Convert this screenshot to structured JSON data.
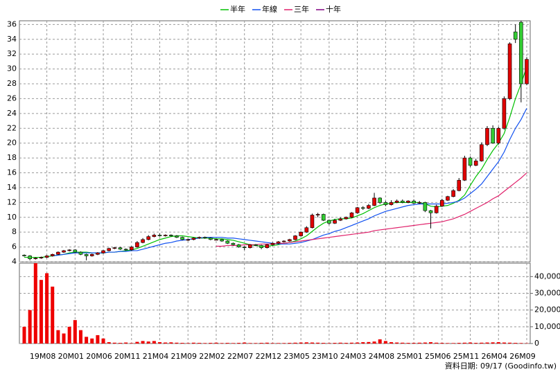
{
  "chart_data": {
    "type": "candlestick",
    "legend": "top",
    "grid": true,
    "up_color": "#e00000",
    "down_color": "#33cc33",
    "categories": [
      null,
      null,
      null,
      null,
      "19M08",
      null,
      null,
      null,
      null,
      "20M01",
      null,
      null,
      null,
      null,
      "20M06",
      null,
      null,
      null,
      null,
      "20M11",
      null,
      null,
      null,
      null,
      "21M04",
      null,
      null,
      null,
      null,
      "21M09",
      null,
      null,
      null,
      null,
      "22M02",
      null,
      null,
      null,
      null,
      "22M07",
      null,
      null,
      null,
      null,
      "22M12",
      null,
      null,
      null,
      null,
      "23M05",
      null,
      null,
      null,
      null,
      "23M10",
      null,
      null,
      null,
      null,
      "24M03",
      null,
      null,
      null,
      null,
      "24M08",
      null,
      null,
      null,
      null,
      "25M01",
      null,
      null,
      null,
      null,
      "25M06",
      null,
      null,
      null,
      null,
      "25M11",
      null,
      null,
      null,
      null,
      "26M04",
      null,
      null,
      null,
      null,
      "26M09"
    ],
    "open": [
      4.9,
      4.8,
      4.4,
      4.5,
      4.6,
      4.8,
      5.0,
      5.3,
      5.5,
      5.6,
      5.3,
      5.0,
      4.8,
      5.0,
      5.2,
      5.5,
      5.8,
      5.9,
      5.7,
      5.6,
      6.0,
      6.6,
      7.0,
      7.4,
      7.6,
      7.5,
      7.6,
      7.5,
      7.3,
      7.0,
      7.0,
      7.2,
      7.3,
      7.2,
      7.0,
      7.0,
      6.8,
      6.5,
      6.3,
      6.0,
      5.9,
      6.3,
      6.2,
      5.9,
      6.3,
      6.5,
      6.7,
      6.8,
      7.0,
      7.5,
      8.0,
      8.6,
      10.3,
      10.4,
      9.6,
      9.2,
      9.6,
      9.8,
      10.0,
      10.6,
      11.3,
      11.2,
      11.6,
      12.6,
      12.0,
      11.7,
      12.0,
      12.2,
      12.0,
      12.2,
      11.9,
      12.0,
      10.9,
      10.6,
      11.5,
      12.3,
      12.8,
      13.6,
      15.0,
      18.0,
      17.0,
      17.6,
      19.8,
      22.0,
      20.0,
      22.0,
      26.0,
      35.0,
      36.3,
      28.0
    ],
    "high": [
      5.0,
      4.9,
      4.6,
      4.7,
      4.9,
      5.1,
      5.4,
      5.6,
      5.7,
      5.7,
      5.4,
      5.1,
      5.1,
      5.3,
      5.6,
      5.9,
      6.0,
      6.0,
      5.8,
      6.1,
      6.8,
      7.2,
      7.6,
      7.8,
      7.8,
      7.7,
      7.7,
      7.6,
      7.4,
      7.1,
      7.3,
      7.4,
      7.4,
      7.3,
      7.1,
      7.1,
      6.9,
      6.6,
      6.4,
      6.1,
      6.4,
      6.4,
      6.3,
      6.4,
      6.6,
      6.8,
      6.9,
      7.1,
      7.6,
      8.1,
      8.8,
      10.5,
      10.6,
      10.5,
      9.7,
      9.8,
      10.0,
      10.1,
      10.7,
      11.4,
      11.5,
      11.8,
      13.3,
      12.7,
      12.2,
      12.3,
      12.4,
      12.4,
      12.3,
      12.4,
      12.2,
      12.1,
      11.0,
      11.7,
      12.5,
      12.9,
      13.8,
      15.3,
      18.3,
      18.2,
      17.9,
      20.1,
      22.3,
      22.4,
      22.2,
      26.3,
      33.6,
      36.0,
      36.5,
      31.6
    ],
    "low": [
      4.7,
      4.2,
      4.3,
      4.4,
      4.5,
      4.7,
      4.9,
      5.2,
      5.4,
      5.2,
      4.9,
      4.2,
      4.7,
      4.9,
      5.1,
      5.4,
      5.7,
      5.6,
      5.5,
      5.5,
      5.9,
      6.5,
      6.9,
      7.3,
      7.4,
      7.4,
      7.4,
      7.2,
      6.9,
      6.8,
      6.9,
      7.1,
      7.1,
      6.9,
      6.9,
      6.7,
      6.4,
      6.2,
      5.9,
      5.6,
      5.8,
      6.1,
      5.7,
      5.8,
      6.2,
      6.4,
      6.6,
      6.7,
      6.9,
      7.4,
      7.9,
      8.5,
      10.0,
      9.5,
      9.0,
      9.1,
      9.5,
      9.7,
      9.9,
      10.5,
      11.0,
      11.1,
      11.5,
      11.8,
      11.5,
      11.6,
      11.9,
      11.9,
      11.9,
      11.8,
      11.8,
      10.7,
      8.5,
      10.5,
      11.4,
      12.2,
      12.7,
      13.5,
      14.9,
      16.8,
      16.9,
      17.5,
      19.6,
      19.9,
      19.8,
      21.8,
      25.8,
      33.5,
      25.5,
      27.8
    ],
    "close": [
      4.8,
      4.4,
      4.5,
      4.6,
      4.8,
      5.0,
      5.3,
      5.5,
      5.6,
      5.3,
      5.0,
      4.8,
      5.0,
      5.2,
      5.5,
      5.8,
      5.9,
      5.7,
      5.6,
      6.0,
      6.6,
      7.0,
      7.4,
      7.6,
      7.5,
      7.6,
      7.5,
      7.3,
      7.0,
      7.0,
      7.2,
      7.3,
      7.2,
      7.0,
      7.0,
      6.8,
      6.5,
      6.3,
      6.0,
      5.9,
      6.3,
      6.2,
      5.9,
      6.3,
      6.5,
      6.7,
      6.8,
      7.0,
      7.5,
      8.0,
      8.6,
      10.3,
      10.4,
      9.6,
      9.2,
      9.6,
      9.8,
      10.0,
      10.6,
      11.3,
      11.2,
      11.6,
      12.6,
      12.0,
      11.7,
      12.0,
      12.2,
      12.0,
      12.2,
      11.9,
      12.0,
      10.9,
      10.6,
      11.5,
      12.3,
      12.8,
      13.6,
      15.0,
      18.0,
      17.0,
      17.6,
      19.8,
      22.0,
      20.0,
      22.0,
      26.0,
      33.4,
      34.0,
      28.0,
      31.3
    ],
    "ylim": [
      4,
      36.5
    ],
    "yticks": [
      4,
      6,
      8,
      10,
      12,
      14,
      16,
      18,
      20,
      22,
      24,
      26,
      28,
      30,
      32,
      34,
      36
    ],
    "series": [
      {
        "name": "半年",
        "color": "#00c000",
        "values": [
          4.6,
          4.6,
          4.6,
          4.6,
          4.7,
          4.8,
          4.9,
          5.0,
          5.2,
          5.3,
          5.3,
          5.3,
          5.2,
          5.2,
          5.2,
          5.3,
          5.3,
          5.4,
          5.5,
          5.6,
          5.8,
          6.1,
          6.4,
          6.7,
          7.0,
          7.2,
          7.4,
          7.5,
          7.5,
          7.4,
          7.3,
          7.2,
          7.2,
          7.2,
          7.1,
          7.1,
          7.0,
          6.9,
          6.7,
          6.5,
          6.3,
          6.2,
          6.1,
          6.1,
          6.2,
          6.3,
          6.5,
          6.6,
          6.8,
          7.1,
          7.5,
          8.1,
          8.7,
          9.2,
          9.5,
          9.7,
          9.8,
          9.8,
          9.9,
          10.2,
          10.5,
          10.9,
          11.3,
          11.6,
          11.8,
          11.9,
          12.0,
          12.0,
          12.0,
          12.0,
          12.0,
          11.8,
          11.5,
          11.4,
          11.5,
          11.6,
          11.9,
          12.3,
          13.0,
          14.3,
          15.5,
          16.5,
          17.8,
          19.0,
          20.0,
          21.3,
          23.5,
          26.0,
          28.0,
          30.3
        ]
      },
      {
        "name": "年線",
        "color": "#1050f0",
        "values": [
          null,
          null,
          null,
          null,
          null,
          4.8,
          4.9,
          5.0,
          5.1,
          5.2,
          5.2,
          5.2,
          5.2,
          5.2,
          5.2,
          5.3,
          5.3,
          5.4,
          5.4,
          5.5,
          5.5,
          5.7,
          5.9,
          6.1,
          6.3,
          6.5,
          6.6,
          6.8,
          6.9,
          7.0,
          7.1,
          7.2,
          7.3,
          7.3,
          7.3,
          7.3,
          7.2,
          7.2,
          7.1,
          7.0,
          6.9,
          6.8,
          6.7,
          6.6,
          6.5,
          6.4,
          6.4,
          6.4,
          6.5,
          6.6,
          6.8,
          7.0,
          7.3,
          7.6,
          7.8,
          8.1,
          8.3,
          8.6,
          8.9,
          9.2,
          9.5,
          9.8,
          10.2,
          10.5,
          10.8,
          11.0,
          11.2,
          11.4,
          11.6,
          11.7,
          11.8,
          11.8,
          11.8,
          11.8,
          11.8,
          11.9,
          12.0,
          12.2,
          12.6,
          13.2,
          13.8,
          14.5,
          15.5,
          16.5,
          17.5,
          18.8,
          20.5,
          22.0,
          23.2,
          24.7
        ]
      },
      {
        "name": "三年",
        "color": "#e0206a",
        "values": [
          null,
          null,
          null,
          null,
          null,
          null,
          null,
          null,
          null,
          null,
          null,
          null,
          null,
          null,
          null,
          null,
          null,
          null,
          null,
          null,
          null,
          null,
          null,
          null,
          null,
          null,
          null,
          null,
          null,
          null,
          null,
          null,
          null,
          null,
          6.1,
          6.1,
          6.2,
          6.2,
          6.2,
          6.3,
          6.3,
          6.3,
          6.4,
          6.4,
          6.4,
          6.5,
          6.5,
          6.6,
          6.7,
          6.8,
          6.9,
          7.0,
          7.1,
          7.2,
          7.3,
          7.4,
          7.5,
          7.6,
          7.7,
          7.8,
          7.9,
          8.0,
          8.2,
          8.3,
          8.4,
          8.5,
          8.6,
          8.7,
          8.8,
          8.9,
          9.0,
          9.1,
          9.2,
          9.3,
          9.4,
          9.6,
          9.8,
          10.1,
          10.4,
          10.8,
          11.2,
          11.6,
          12.0,
          12.5,
          12.9,
          13.5,
          14.1,
          14.7,
          15.3,
          16.0
        ]
      },
      {
        "name": "十年",
        "color": "#800080",
        "values": [
          null,
          null,
          null,
          null,
          null,
          null,
          null,
          null,
          null,
          null,
          null,
          null,
          null,
          null,
          null,
          null,
          null,
          null,
          null,
          null,
          null,
          null,
          null,
          null,
          null,
          null,
          null,
          null,
          null,
          null,
          null,
          null,
          null,
          null,
          null,
          null,
          null,
          null,
          null,
          null,
          null,
          null,
          null,
          null,
          null,
          null,
          null,
          null,
          null,
          null,
          null,
          null,
          null,
          null,
          null,
          null,
          null,
          null,
          null,
          null,
          null,
          null,
          null,
          null,
          null,
          null,
          null,
          null,
          null,
          null,
          null,
          null,
          null,
          null,
          null,
          null,
          null,
          null,
          null,
          null,
          null,
          null,
          null,
          null,
          null,
          null,
          null,
          null,
          null,
          null
        ]
      }
    ],
    "volume": {
      "color": "#ee0000",
      "ylim": [
        0,
        48000
      ],
      "yticks": [
        0,
        {
          "value": 10000,
          "label": "10,000"
        },
        {
          "value": 20000,
          "label": "20,000"
        },
        {
          "value": 30000,
          "label": "30,000"
        },
        {
          "value": 40000,
          "label": "40,000"
        }
      ],
      "values": [
        10000,
        20000,
        48000,
        38000,
        42000,
        34000,
        8000,
        6000,
        10000,
        14000,
        8000,
        4000,
        3000,
        5000,
        3000,
        800,
        500,
        400,
        600,
        300,
        1000,
        1500,
        1200,
        1500,
        800,
        600,
        700,
        500,
        400,
        300,
        500,
        400,
        300,
        400,
        500,
        300,
        400,
        300,
        400,
        600,
        300,
        300,
        400,
        500,
        300,
        300,
        300,
        400,
        500,
        600,
        700,
        600,
        500,
        400,
        300,
        400,
        500,
        400,
        500,
        600,
        800,
        900,
        1200,
        2500,
        1500,
        800,
        600,
        500,
        400,
        400,
        500,
        600,
        800,
        500,
        400,
        300,
        300,
        400,
        500,
        600,
        400,
        500,
        600,
        700,
        800,
        600,
        500,
        400,
        300,
        200
      ]
    },
    "footer": "資料日期: 09/17 (Goodinfo.tw)"
  }
}
